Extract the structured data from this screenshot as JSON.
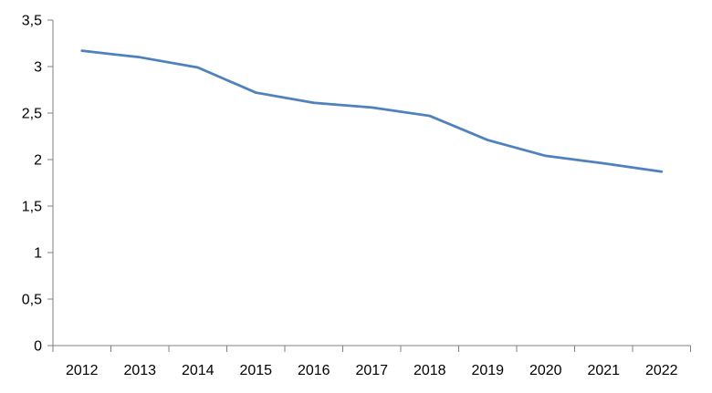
{
  "colors": {
    "background": "#ffffff",
    "line": "#4F81BD",
    "axis": "#808080",
    "label": "#000000"
  },
  "chart_data": {
    "type": "line",
    "title": "",
    "xlabel": "",
    "ylabel": "",
    "categories": [
      "2012",
      "2013",
      "2014",
      "2015",
      "2016",
      "2017",
      "2018",
      "2019",
      "2020",
      "2021",
      "2022"
    ],
    "series": [
      {
        "name": "",
        "values": [
          3.17,
          3.1,
          2.99,
          2.72,
          2.61,
          2.56,
          2.47,
          2.21,
          2.04,
          1.96,
          1.87
        ]
      }
    ],
    "ylim": [
      0,
      3.5
    ],
    "ytick_interval": 0.5,
    "ytick_labels": [
      "0",
      "0,5",
      "1",
      "1,5",
      "2",
      "2,5",
      "3",
      "3,5"
    ],
    "decimal_separator": ",",
    "grid": false,
    "legend": false,
    "tick_style": "outside"
  }
}
